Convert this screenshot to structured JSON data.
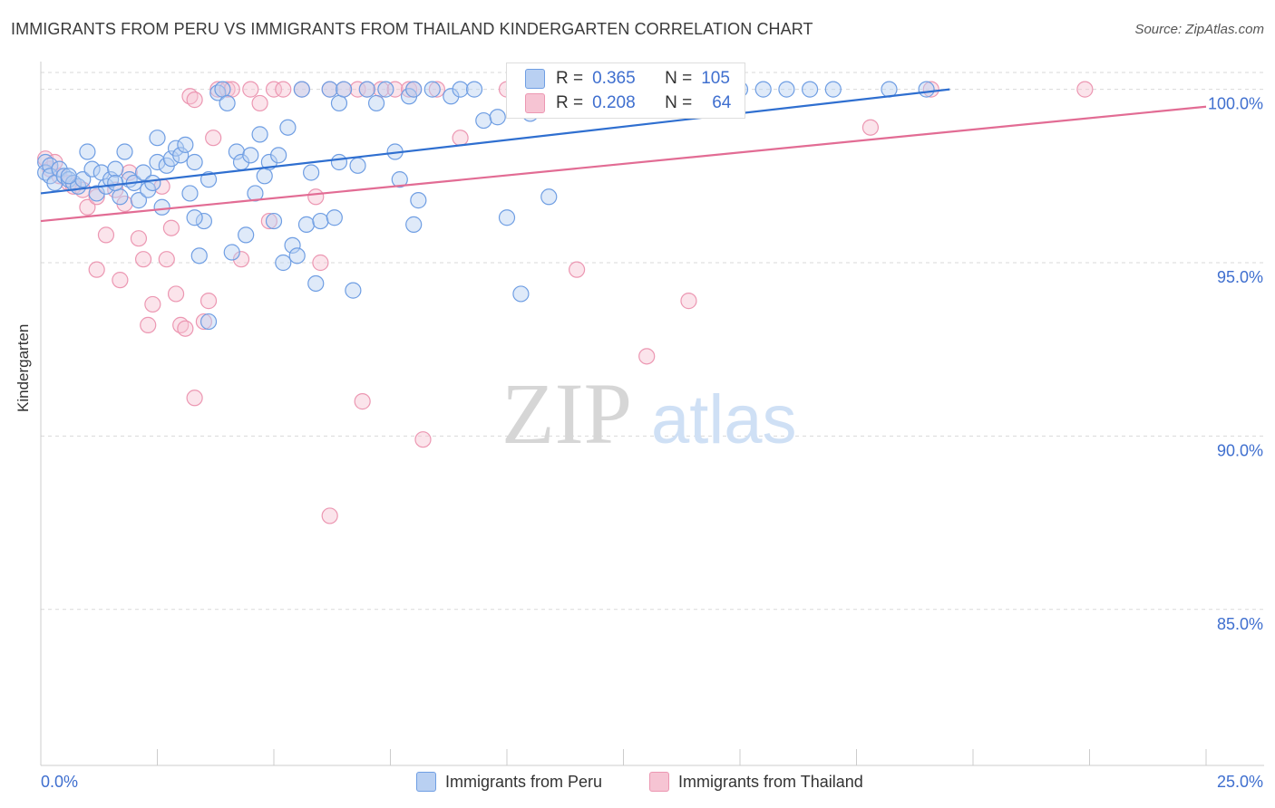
{
  "title": "IMMIGRANTS FROM PERU VS IMMIGRANTS FROM THAILAND KINDERGARTEN CORRELATION CHART",
  "source": "Source: ZipAtlas.com",
  "watermark": {
    "zip": "ZIP",
    "atlas": "atlas"
  },
  "colors": {
    "peru_fill": "#b9d0f2",
    "peru_stroke": "#6f9ee3",
    "peru_line": "#2f6fd0",
    "thai_fill": "#f6c4d3",
    "thai_stroke": "#ec97b2",
    "thai_line": "#e26c94",
    "tick_label": "#3f6fcf",
    "grid": "#d9d9d9"
  },
  "stats": {
    "peru": {
      "r_label": "R =",
      "r_value": "0.365",
      "n_label": "N =",
      "n_value": "105"
    },
    "thai": {
      "r_label": "R =",
      "r_value": "0.208",
      "n_label": "N =",
      "n_value": "64"
    }
  },
  "legend": {
    "peru": "Immigrants from Peru",
    "thai": "Immigrants from Thailand"
  },
  "chart_data": {
    "type": "scatter",
    "title": "IMMIGRANTS FROM PERU VS IMMIGRANTS FROM THAILAND KINDERGARTEN CORRELATION CHART",
    "xlabel": "",
    "ylabel": "Kindergarten",
    "xlim": [
      0,
      25
    ],
    "ylim": [
      80.5,
      100.8
    ],
    "x_tick_labels": [
      "0.0%",
      "25.0%"
    ],
    "y_ticks": [
      100,
      95,
      90,
      85
    ],
    "y_tick_labels": [
      "100.0%",
      "95.0%",
      "90.0%",
      "85.0%"
    ],
    "grid": true,
    "series": [
      {
        "name": "Immigrants from Peru",
        "trend": [
          [
            0,
            97.0
          ],
          [
            19.5,
            100.0
          ]
        ],
        "points": [
          [
            0.1,
            97.9
          ],
          [
            0.1,
            97.6
          ],
          [
            0.2,
            97.8
          ],
          [
            0.2,
            97.5
          ],
          [
            0.3,
            97.3
          ],
          [
            0.4,
            97.7
          ],
          [
            0.5,
            97.5
          ],
          [
            0.6,
            97.4
          ],
          [
            0.7,
            97.3
          ],
          [
            0.8,
            97.2
          ],
          [
            0.9,
            97.4
          ],
          [
            1.0,
            98.2
          ],
          [
            1.1,
            97.7
          ],
          [
            1.2,
            97.0
          ],
          [
            1.3,
            97.6
          ],
          [
            1.4,
            97.2
          ],
          [
            1.5,
            97.4
          ],
          [
            1.6,
            97.7
          ],
          [
            1.7,
            96.9
          ],
          [
            1.8,
            98.2
          ],
          [
            1.9,
            97.4
          ],
          [
            2.0,
            97.3
          ],
          [
            2.1,
            96.8
          ],
          [
            2.2,
            97.6
          ],
          [
            2.3,
            97.1
          ],
          [
            2.5,
            98.6
          ],
          [
            2.5,
            97.9
          ],
          [
            2.6,
            96.6
          ],
          [
            2.7,
            97.8
          ],
          [
            2.8,
            98.0
          ],
          [
            2.9,
            98.3
          ],
          [
            3.0,
            98.1
          ],
          [
            3.1,
            98.4
          ],
          [
            3.2,
            97.0
          ],
          [
            3.3,
            97.9
          ],
          [
            3.4,
            95.2
          ],
          [
            3.5,
            96.2
          ],
          [
            3.6,
            97.4
          ],
          [
            3.6,
            93.3
          ],
          [
            3.8,
            99.9
          ],
          [
            3.9,
            100.0
          ],
          [
            4.0,
            99.6
          ],
          [
            4.1,
            95.3
          ],
          [
            4.2,
            98.2
          ],
          [
            4.3,
            97.9
          ],
          [
            4.4,
            95.8
          ],
          [
            4.5,
            98.1
          ],
          [
            4.6,
            97.0
          ],
          [
            4.7,
            98.7
          ],
          [
            4.8,
            97.5
          ],
          [
            4.9,
            97.9
          ],
          [
            5.0,
            96.2
          ],
          [
            5.1,
            98.1
          ],
          [
            5.2,
            95.0
          ],
          [
            5.3,
            98.9
          ],
          [
            5.4,
            95.5
          ],
          [
            5.5,
            95.2
          ],
          [
            5.6,
            100.0
          ],
          [
            5.7,
            96.1
          ],
          [
            5.8,
            97.6
          ],
          [
            5.9,
            94.4
          ],
          [
            6.0,
            96.2
          ],
          [
            6.2,
            100.0
          ],
          [
            6.3,
            96.3
          ],
          [
            6.4,
            97.9
          ],
          [
            6.4,
            99.6
          ],
          [
            6.5,
            100.0
          ],
          [
            6.7,
            94.2
          ],
          [
            6.8,
            97.8
          ],
          [
            7.0,
            100.0
          ],
          [
            7.2,
            99.6
          ],
          [
            7.4,
            100.0
          ],
          [
            7.6,
            98.2
          ],
          [
            7.7,
            97.4
          ],
          [
            7.9,
            99.8
          ],
          [
            8.0,
            100.0
          ],
          [
            8.0,
            96.1
          ],
          [
            8.1,
            96.8
          ],
          [
            8.4,
            100.0
          ],
          [
            8.8,
            99.8
          ],
          [
            9.0,
            100.0
          ],
          [
            9.3,
            100.0
          ],
          [
            9.5,
            99.1
          ],
          [
            9.8,
            99.2
          ],
          [
            10.0,
            96.3
          ],
          [
            10.5,
            99.3
          ],
          [
            10.9,
            96.9
          ],
          [
            11.5,
            100.0
          ],
          [
            11.8,
            100.0
          ],
          [
            10.2,
            100.0
          ],
          [
            10.3,
            94.1
          ],
          [
            12.2,
            100.0
          ],
          [
            13.0,
            100.0
          ],
          [
            14.0,
            100.0
          ],
          [
            15.0,
            100.0
          ],
          [
            15.5,
            100.0
          ],
          [
            16.0,
            100.0
          ],
          [
            17.0,
            100.0
          ],
          [
            18.2,
            100.0
          ],
          [
            19.0,
            100.0
          ],
          [
            0.6,
            97.5
          ],
          [
            1.6,
            97.3
          ],
          [
            2.4,
            97.3
          ],
          [
            3.3,
            96.3
          ],
          [
            16.5,
            100.0
          ]
        ]
      },
      {
        "name": "Immigrants from Thailand",
        "trend": [
          [
            0,
            96.2
          ],
          [
            25,
            99.5
          ]
        ],
        "points": [
          [
            0.1,
            98.0
          ],
          [
            0.2,
            97.7
          ],
          [
            0.3,
            97.9
          ],
          [
            0.4,
            97.5
          ],
          [
            0.6,
            97.3
          ],
          [
            0.7,
            97.2
          ],
          [
            0.9,
            97.1
          ],
          [
            1.0,
            96.6
          ],
          [
            1.2,
            96.9
          ],
          [
            1.2,
            94.8
          ],
          [
            1.4,
            95.8
          ],
          [
            1.6,
            97.1
          ],
          [
            1.7,
            94.5
          ],
          [
            1.8,
            96.7
          ],
          [
            1.9,
            97.6
          ],
          [
            2.1,
            95.7
          ],
          [
            2.2,
            95.1
          ],
          [
            2.3,
            93.2
          ],
          [
            2.4,
            93.8
          ],
          [
            2.6,
            97.2
          ],
          [
            2.7,
            95.1
          ],
          [
            2.8,
            96.0
          ],
          [
            2.9,
            94.1
          ],
          [
            3.0,
            93.2
          ],
          [
            3.1,
            93.1
          ],
          [
            3.2,
            99.8
          ],
          [
            3.3,
            99.7
          ],
          [
            3.3,
            91.1
          ],
          [
            3.5,
            93.3
          ],
          [
            3.6,
            93.9
          ],
          [
            3.7,
            98.6
          ],
          [
            3.8,
            100.0
          ],
          [
            4.0,
            100.0
          ],
          [
            4.1,
            100.0
          ],
          [
            4.3,
            95.1
          ],
          [
            4.5,
            100.0
          ],
          [
            4.7,
            99.6
          ],
          [
            4.9,
            96.2
          ],
          [
            5.0,
            100.0
          ],
          [
            5.2,
            100.0
          ],
          [
            5.6,
            100.0
          ],
          [
            5.9,
            96.9
          ],
          [
            6.0,
            95.0
          ],
          [
            6.2,
            100.0
          ],
          [
            6.5,
            100.0
          ],
          [
            6.8,
            100.0
          ],
          [
            6.9,
            91.0
          ],
          [
            7.0,
            100.0
          ],
          [
            7.3,
            100.0
          ],
          [
            7.6,
            100.0
          ],
          [
            7.9,
            100.0
          ],
          [
            8.0,
            100.0
          ],
          [
            6.2,
            87.7
          ],
          [
            8.2,
            89.9
          ],
          [
            8.5,
            100.0
          ],
          [
            9.0,
            98.6
          ],
          [
            10.0,
            100.0
          ],
          [
            11.5,
            94.8
          ],
          [
            12.5,
            100.0
          ],
          [
            13.0,
            92.3
          ],
          [
            13.9,
            93.9
          ],
          [
            17.8,
            98.9
          ],
          [
            19.1,
            100.0
          ],
          [
            22.4,
            100.0
          ]
        ]
      }
    ]
  }
}
